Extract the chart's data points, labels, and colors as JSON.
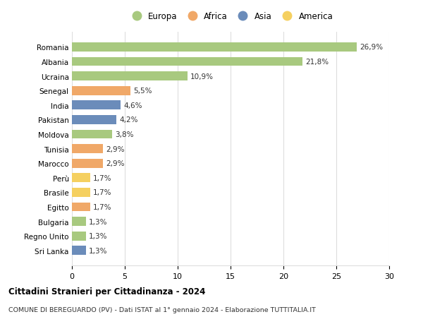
{
  "countries": [
    "Romania",
    "Albania",
    "Ucraina",
    "Senegal",
    "India",
    "Pakistan",
    "Moldova",
    "Tunisia",
    "Marocco",
    "Perù",
    "Brasile",
    "Egitto",
    "Bulgaria",
    "Regno Unito",
    "Sri Lanka"
  ],
  "values": [
    26.9,
    21.8,
    10.9,
    5.5,
    4.6,
    4.2,
    3.8,
    2.9,
    2.9,
    1.7,
    1.7,
    1.7,
    1.3,
    1.3,
    1.3
  ],
  "labels": [
    "26,9%",
    "21,8%",
    "10,9%",
    "5,5%",
    "4,6%",
    "4,2%",
    "3,8%",
    "2,9%",
    "2,9%",
    "1,7%",
    "1,7%",
    "1,7%",
    "1,3%",
    "1,3%",
    "1,3%"
  ],
  "continents": [
    "Europa",
    "Europa",
    "Europa",
    "Africa",
    "Asia",
    "Asia",
    "Europa",
    "Africa",
    "Africa",
    "America",
    "America",
    "Africa",
    "Europa",
    "Europa",
    "Asia"
  ],
  "continent_colors": {
    "Europa": "#a8c97f",
    "Africa": "#f0a868",
    "Asia": "#6b8cba",
    "America": "#f5d060"
  },
  "xlim": [
    0,
    30
  ],
  "xticks": [
    0,
    5,
    10,
    15,
    20,
    25,
    30
  ],
  "title": "Cittadini Stranieri per Cittadinanza - 2024",
  "subtitle": "COMUNE DI BEREGUARDO (PV) - Dati ISTAT al 1° gennaio 2024 - Elaborazione TUTTITALIA.IT",
  "background_color": "#ffffff",
  "grid_color": "#dddddd"
}
